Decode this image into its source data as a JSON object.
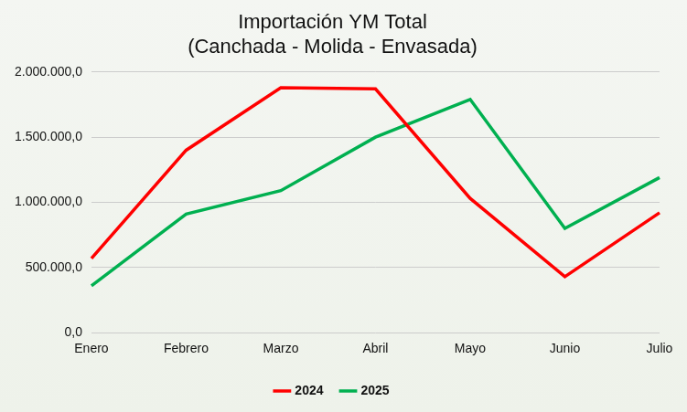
{
  "chart_data": {
    "type": "line",
    "title": [
      "Importación YM Total",
      "(Canchada - Molida - Envasada)"
    ],
    "categories": [
      "Enero",
      "Febrero",
      "Marzo",
      "Abril",
      "Mayo",
      "Junio",
      "Julio"
    ],
    "series": [
      {
        "name": "2024",
        "color": "#ff0000",
        "values": [
          570000,
          1400000,
          1880000,
          1870000,
          1030000,
          430000,
          920000
        ]
      },
      {
        "name": "2025",
        "color": "#00b050",
        "values": [
          360000,
          910000,
          1090000,
          1500000,
          1790000,
          800000,
          1190000
        ]
      }
    ],
    "ylim": [
      0,
      2000000
    ],
    "yticks": [
      {
        "value": 0,
        "label": "0,0"
      },
      {
        "value": 500000,
        "label": "500.000,0"
      },
      {
        "value": 1000000,
        "label": "1.000.000,0"
      },
      {
        "value": 1500000,
        "label": "1.500.000,0"
      },
      {
        "value": 2000000,
        "label": "2.000.000,0"
      }
    ],
    "grid": "y",
    "legend": "bottom"
  }
}
